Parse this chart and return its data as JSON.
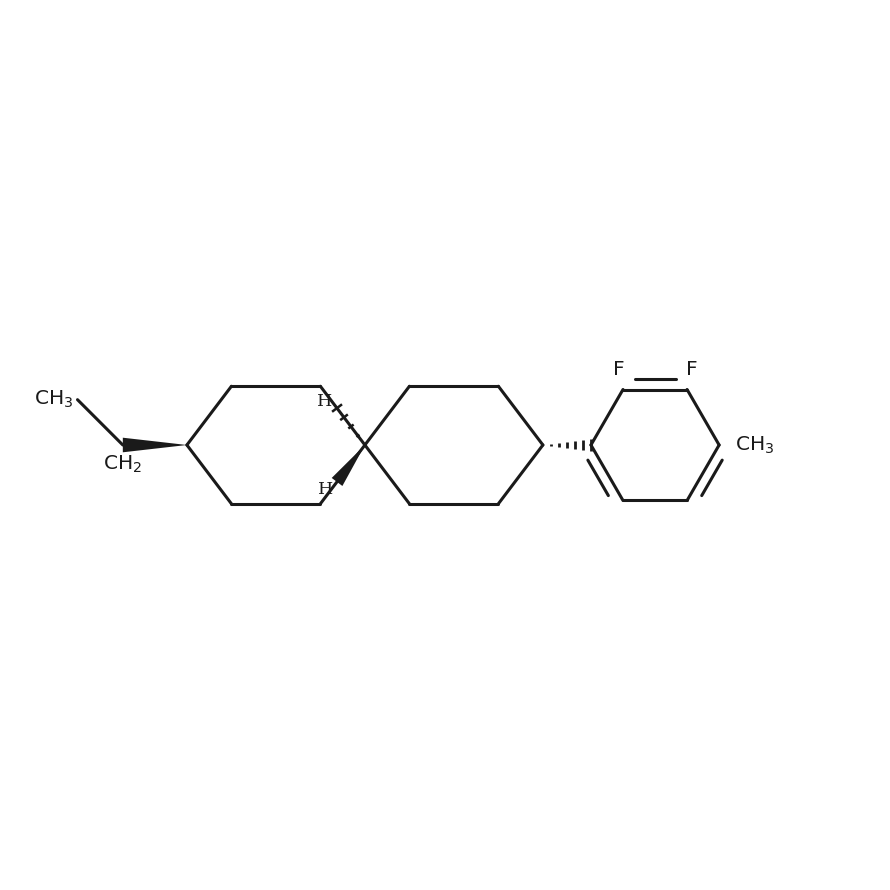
{
  "bg_color": "#ffffff",
  "line_color": "#1a1a1a",
  "line_width": 2.2,
  "figsize": [
    8.9,
    8.9
  ],
  "dpi": 100,
  "xlim": [
    0,
    10
  ],
  "ylim": [
    0,
    10
  ]
}
